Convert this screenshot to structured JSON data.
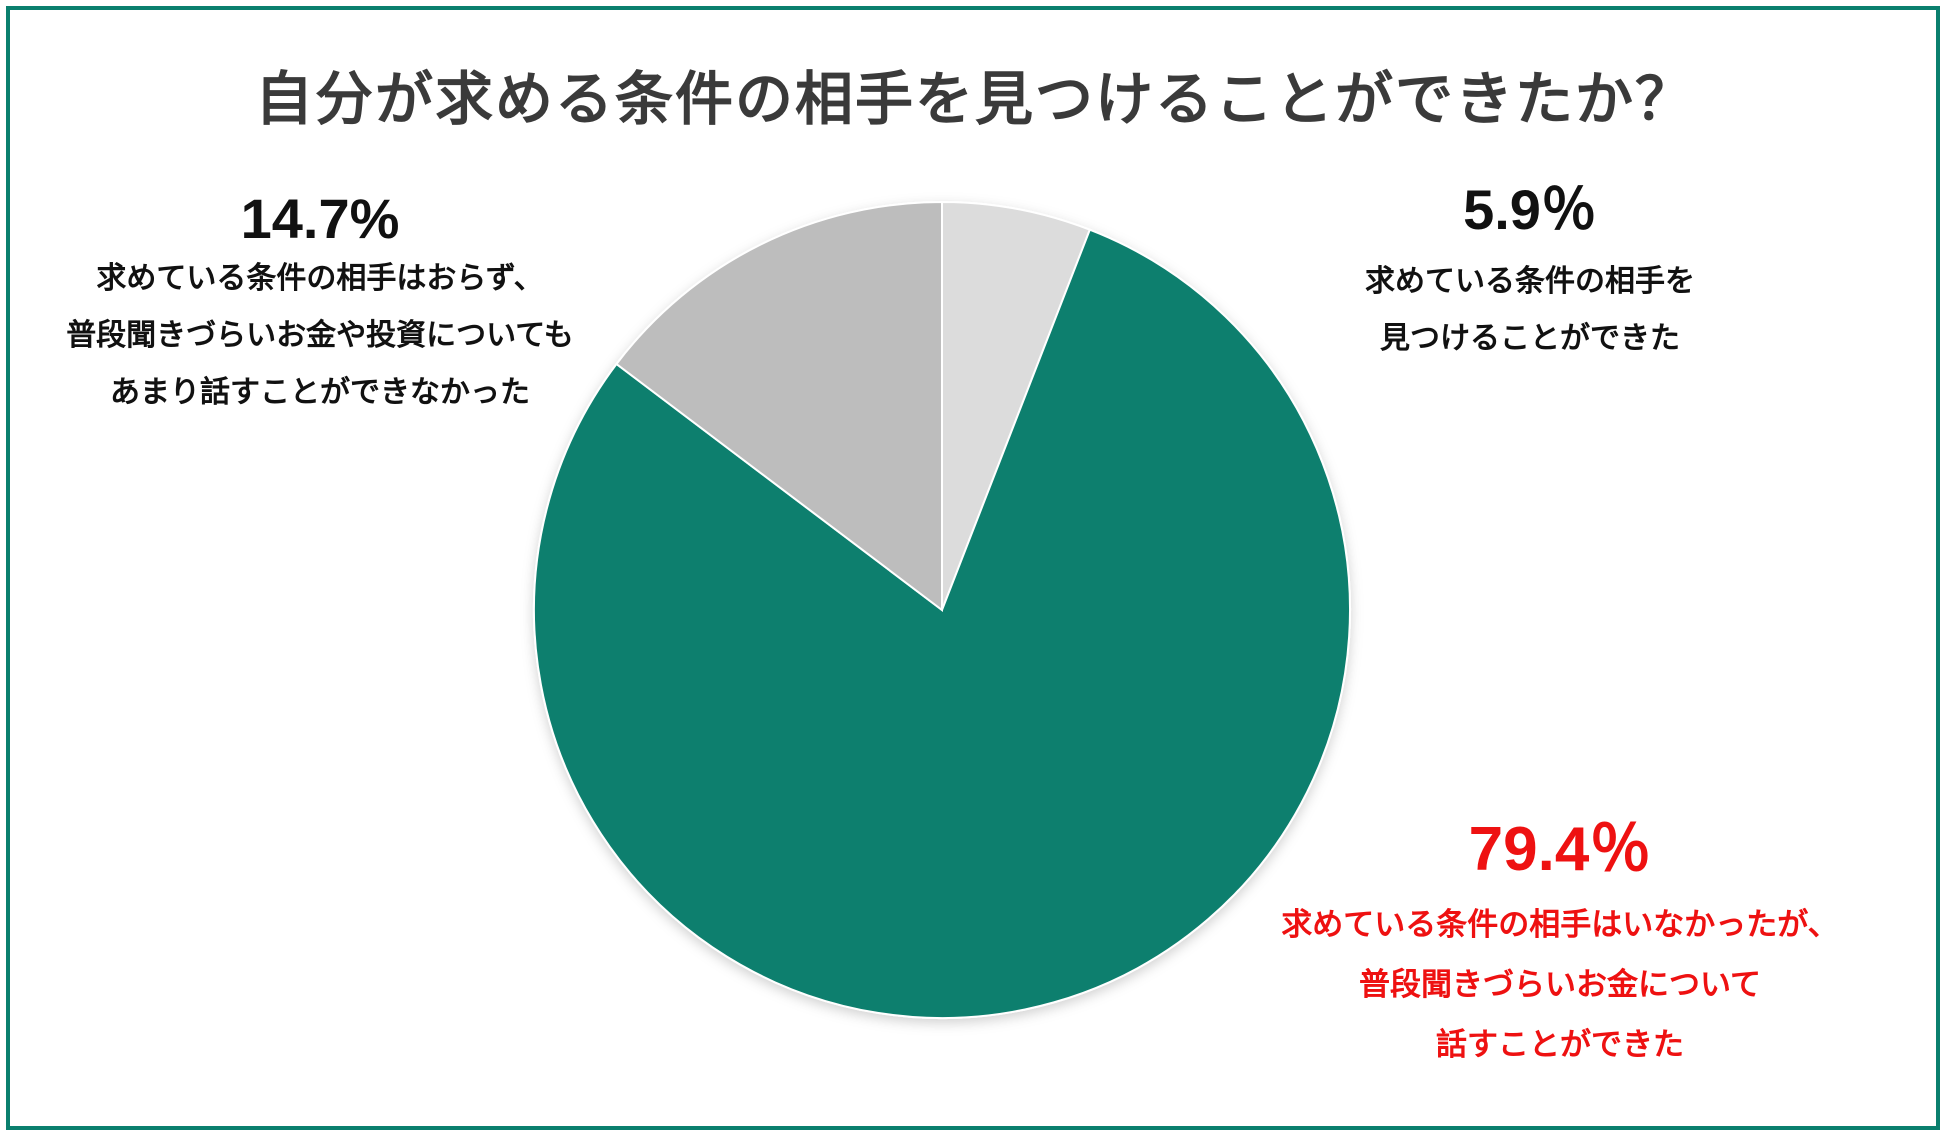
{
  "title": "自分が求める条件の相手を見つけることができたか？",
  "colors": {
    "frame": "#0a7f6e",
    "found": "#dcdcdc",
    "talk": "#0a7f6e",
    "none": "#bdbdbd",
    "highlight_text": "#ee1111"
  },
  "chart_data": {
    "type": "pie",
    "title": "自分が求める条件の相手を見つけることができたか？",
    "slices": [
      {
        "label": "求めている条件の相手を見つけることができた",
        "value": 5.9,
        "display": "5.9％"
      },
      {
        "label": "求めている条件の相手はいなかったが、普段聞きづらいお金について話すことができた",
        "value": 79.4,
        "display": "79.4％"
      },
      {
        "label": "求めている条件の相手はおらず、普段聞きづらいお金や投資についてもあまり話すことができなかった",
        "value": 14.7,
        "display": "14.7%"
      }
    ],
    "start_angle": "12 o'clock",
    "direction": "clockwise"
  },
  "labels": {
    "found": {
      "pct": "5.9％",
      "lines": [
        "求めている条件の相手を",
        "見つけることができた"
      ]
    },
    "talk": {
      "pct": "79.4％",
      "lines": [
        "求めている条件の相手はいなかったが、",
        "普段聞きづらいお金について",
        "話すことができた"
      ]
    },
    "none": {
      "pct": "14.7%",
      "lines": [
        "求めている条件の相手はおらず、",
        "普段聞きづらいお金や投資についても",
        "あまり話すことができなかった"
      ]
    }
  }
}
